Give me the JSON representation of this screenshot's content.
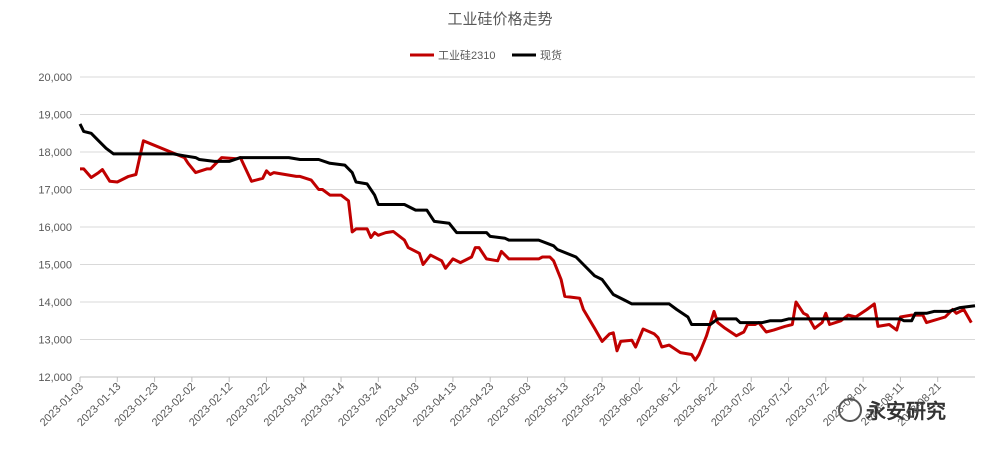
{
  "chart_data": {
    "type": "line",
    "title": "工业硅价格走势",
    "watermark": "永安研究",
    "grid": true,
    "legend": "top",
    "xlim": [
      "2023-01-03",
      "2023-08-31"
    ],
    "xticks": [
      "2023-01-03",
      "2023-01-13",
      "2023-01-23",
      "2023-02-02",
      "2023-02-12",
      "2023-02-22",
      "2023-03-04",
      "2023-03-14",
      "2023-03-24",
      "2023-04-03",
      "2023-04-13",
      "2023-04-23",
      "2023-05-03",
      "2023-05-13",
      "2023-05-23",
      "2023-06-02",
      "2023-06-12",
      "2023-06-22",
      "2023-07-02",
      "2023-07-12",
      "2023-07-22",
      "2023-08-01",
      "2023-08-11",
      "2023-08-21"
    ],
    "ylim": [
      12000,
      20000
    ],
    "yticks": [
      {
        "value": 12000,
        "label": "12,000"
      },
      {
        "value": 13000,
        "label": "13,000"
      },
      {
        "value": 14000,
        "label": "14,000"
      },
      {
        "value": 15000,
        "label": "15,000"
      },
      {
        "value": 16000,
        "label": "16,000"
      },
      {
        "value": 17000,
        "label": "17,000"
      },
      {
        "value": 18000,
        "label": "18,000"
      },
      {
        "value": 19000,
        "label": "19,000"
      },
      {
        "value": 20000,
        "label": "20,000"
      }
    ],
    "series": [
      {
        "name": "工业硅2310",
        "color": "#c00000",
        "x": [
          "2023-01-03",
          "2023-01-04",
          "2023-01-06",
          "2023-01-08",
          "2023-01-09",
          "2023-01-11",
          "2023-01-13",
          "2023-01-16",
          "2023-01-18",
          "2023-01-20",
          "2023-01-31",
          "2023-02-01",
          "2023-02-03",
          "2023-02-06",
          "2023-02-07",
          "2023-02-10",
          "2023-02-14",
          "2023-02-15",
          "2023-02-18",
          "2023-02-21",
          "2023-02-22",
          "2023-02-23",
          "2023-02-24",
          "2023-03-02",
          "2023-03-03",
          "2023-03-06",
          "2023-03-08",
          "2023-03-09",
          "2023-03-11",
          "2023-03-14",
          "2023-03-16",
          "2023-03-17",
          "2023-03-18",
          "2023-03-21",
          "2023-03-22",
          "2023-03-23",
          "2023-03-24",
          "2023-03-26",
          "2023-03-28",
          "2023-03-31",
          "2023-04-01",
          "2023-04-04",
          "2023-04-05",
          "2023-04-07",
          "2023-04-10",
          "2023-04-11",
          "2023-04-13",
          "2023-04-15",
          "2023-04-18",
          "2023-04-19",
          "2023-04-20",
          "2023-04-22",
          "2023-04-25",
          "2023-04-26",
          "2023-04-28",
          "2023-05-06",
          "2023-05-07",
          "2023-05-09",
          "2023-05-10",
          "2023-05-12",
          "2023-05-13",
          "2023-05-17",
          "2023-05-18",
          "2023-05-21",
          "2023-05-23",
          "2023-05-25",
          "2023-05-26",
          "2023-05-27",
          "2023-05-28",
          "2023-05-31",
          "2023-06-01",
          "2023-06-03",
          "2023-06-06",
          "2023-06-07",
          "2023-06-08",
          "2023-06-10",
          "2023-06-13",
          "2023-06-16",
          "2023-06-17",
          "2023-06-18",
          "2023-06-20",
          "2023-06-22",
          "2023-06-23",
          "2023-06-25",
          "2023-06-28",
          "2023-06-30",
          "2023-07-01",
          "2023-07-03",
          "2023-07-04",
          "2023-07-06",
          "2023-07-08",
          "2023-07-11",
          "2023-07-13",
          "2023-07-14",
          "2023-07-16",
          "2023-07-17",
          "2023-07-19",
          "2023-07-21",
          "2023-07-22",
          "2023-07-23",
          "2023-07-26",
          "2023-07-28",
          "2023-07-30",
          "2023-08-02",
          "2023-08-04",
          "2023-08-05",
          "2023-08-08",
          "2023-08-10",
          "2023-08-11",
          "2023-08-14",
          "2023-08-17",
          "2023-08-18",
          "2023-08-23",
          "2023-08-25",
          "2023-08-26",
          "2023-08-28",
          "2023-08-30"
        ],
        "values": [
          17550,
          17550,
          17320,
          17450,
          17530,
          17220,
          17200,
          17350,
          17400,
          18300,
          17850,
          17700,
          17450,
          17550,
          17550,
          17850,
          17820,
          17850,
          17220,
          17300,
          17500,
          17400,
          17450,
          17350,
          17350,
          17250,
          17000,
          17000,
          16850,
          16850,
          16700,
          15870,
          15950,
          15950,
          15720,
          15850,
          15780,
          15850,
          15880,
          15650,
          15450,
          15300,
          15000,
          15250,
          15100,
          14900,
          15150,
          15050,
          15200,
          15450,
          15450,
          15150,
          15100,
          15350,
          15150,
          15150,
          15200,
          15200,
          15100,
          14600,
          14150,
          14100,
          13800,
          13300,
          12950,
          13150,
          13180,
          12700,
          12950,
          12980,
          12800,
          13280,
          13150,
          13050,
          12800,
          12850,
          12650,
          12600,
          12450,
          12600,
          13100,
          13750,
          13450,
          13300,
          13100,
          13200,
          13400,
          13400,
          13450,
          13200,
          13250,
          13350,
          13400,
          14000,
          13700,
          13650,
          13300,
          13450,
          13700,
          13400,
          13500,
          13650,
          13600,
          13800,
          13950,
          13350,
          13400,
          13250,
          13600,
          13650,
          13650,
          13450,
          13600,
          13800,
          13700,
          13800,
          13450
        ]
      },
      {
        "name": "现货",
        "color": "#000000",
        "x": [
          "2023-01-03",
          "2023-01-04",
          "2023-01-06",
          "2023-01-08",
          "2023-01-10",
          "2023-01-12",
          "2023-01-28",
          "2023-01-31",
          "2023-02-03",
          "2023-02-04",
          "2023-02-08",
          "2023-02-12",
          "2023-02-15",
          "2023-02-28",
          "2023-03-03",
          "2023-03-08",
          "2023-03-11",
          "2023-03-15",
          "2023-03-17",
          "2023-03-18",
          "2023-03-21",
          "2023-03-23",
          "2023-03-24",
          "2023-03-31",
          "2023-04-03",
          "2023-04-06",
          "2023-04-08",
          "2023-04-12",
          "2023-04-14",
          "2023-04-22",
          "2023-04-23",
          "2023-04-27",
          "2023-04-28",
          "2023-05-06",
          "2023-05-10",
          "2023-05-11",
          "2023-05-16",
          "2023-05-18",
          "2023-05-21",
          "2023-05-23",
          "2023-05-26",
          "2023-05-29",
          "2023-05-31",
          "2023-06-10",
          "2023-06-12",
          "2023-06-15",
          "2023-06-16",
          "2023-06-21",
          "2023-06-23",
          "2023-06-28",
          "2023-06-29",
          "2023-07-05",
          "2023-07-07",
          "2023-07-10",
          "2023-07-12",
          "2023-08-11",
          "2023-08-12",
          "2023-08-14",
          "2023-08-15",
          "2023-08-18",
          "2023-08-20",
          "2023-08-24",
          "2023-08-27",
          "2023-08-31"
        ],
        "values": [
          18750,
          18550,
          18500,
          18300,
          18100,
          17950,
          17950,
          17900,
          17850,
          17800,
          17750,
          17750,
          17850,
          17850,
          17800,
          17800,
          17700,
          17650,
          17450,
          17200,
          17150,
          16850,
          16600,
          16600,
          16450,
          16450,
          16150,
          16100,
          15850,
          15850,
          15750,
          15700,
          15650,
          15650,
          15500,
          15400,
          15200,
          15000,
          14700,
          14600,
          14200,
          14050,
          13950,
          13950,
          13800,
          13600,
          13400,
          13400,
          13550,
          13550,
          13450,
          13450,
          13500,
          13500,
          13550,
          13550,
          13500,
          13500,
          13700,
          13700,
          13750,
          13750,
          13850,
          13900
        ]
      }
    ]
  }
}
